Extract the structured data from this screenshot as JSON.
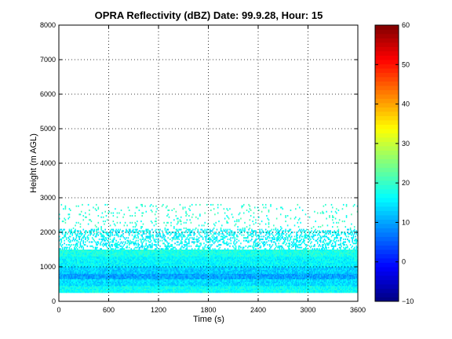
{
  "chart_data": {
    "type": "heatmap",
    "title": "OPRA Reflectivity (dBZ)  Date: 99.9.28, Hour: 15",
    "xlabel": "Time (s)",
    "ylabel": "Height (m AGL)",
    "xlim": [
      0,
      3600
    ],
    "ylim": [
      0,
      8000
    ],
    "xticks": [
      0,
      600,
      1200,
      1800,
      2400,
      3000,
      3600
    ],
    "yticks": [
      0,
      1000,
      2000,
      3000,
      4000,
      5000,
      6000,
      7000,
      8000
    ],
    "grid": true,
    "colorbar": {
      "range": [
        -10,
        60
      ],
      "ticks": [
        -10,
        0,
        10,
        20,
        30,
        40,
        50,
        60
      ],
      "colormap": "jet"
    },
    "layers": [
      {
        "height_range": [
          250,
          450
        ],
        "typical_dbz": 17
      },
      {
        "height_range": [
          450,
          650
        ],
        "typical_dbz": 14
      },
      {
        "height_range": [
          650,
          800
        ],
        "typical_dbz": 10
      },
      {
        "height_range": [
          800,
          1000
        ],
        "typical_dbz": 13
      },
      {
        "height_range": [
          1000,
          1300
        ],
        "typical_dbz": 16
      },
      {
        "height_range": [
          1300,
          1500
        ],
        "typical_dbz": 18
      },
      {
        "height_range": [
          1500,
          2100
        ],
        "typical_dbz": 16,
        "note": "intermittent"
      },
      {
        "height_range": [
          2100,
          2800
        ],
        "typical_dbz": 19,
        "note": "sparse"
      }
    ]
  }
}
